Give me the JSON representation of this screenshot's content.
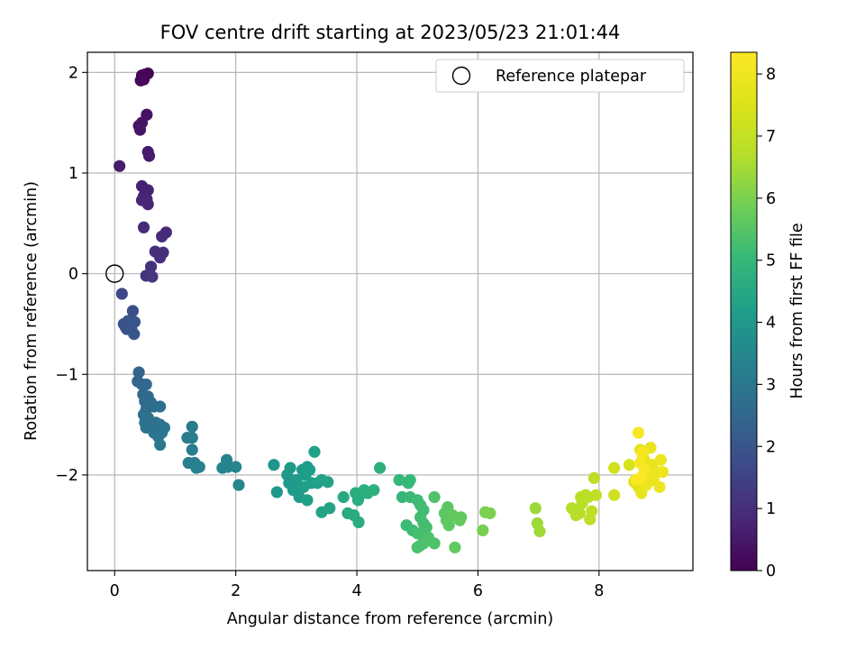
{
  "chart_data": {
    "type": "scatter",
    "title": "FOV centre drift starting at 2023/05/23 21:01:44",
    "xlabel": "Angular distance from reference (arcmin)",
    "ylabel": "Rotation from reference (arcmin)",
    "xlim": [
      -0.45,
      9.55
    ],
    "ylim": [
      -2.95,
      2.2
    ],
    "xticks": [
      0,
      2,
      4,
      6,
      8
    ],
    "yticks": [
      -2,
      -1,
      0,
      1,
      2
    ],
    "xtick_labels": [
      "0",
      "2",
      "4",
      "6",
      "8"
    ],
    "ytick_labels": [
      "−2",
      "−1",
      "0",
      "1",
      "2"
    ],
    "grid": true,
    "legend": {
      "position": "top-right",
      "label": "Reference platepar"
    },
    "reference_point": {
      "x": 0,
      "y": 0
    },
    "colorbar": {
      "label": "Hours from first FF file",
      "range": [
        0,
        8.35
      ],
      "ticks": [
        0,
        1,
        2,
        3,
        4,
        5,
        6,
        7,
        8
      ],
      "tick_labels": [
        "0",
        "1",
        "2",
        "3",
        "4",
        "5",
        "6",
        "7",
        "8"
      ],
      "colormap": "viridis"
    },
    "points": [
      {
        "x": 0.5,
        "y": 1.98,
        "h": 0.05
      },
      {
        "x": 0.55,
        "y": 1.99,
        "h": 0.08
      },
      {
        "x": 0.45,
        "y": 1.97,
        "h": 0.1
      },
      {
        "x": 0.48,
        "y": 1.93,
        "h": 0.12
      },
      {
        "x": 0.43,
        "y": 1.92,
        "h": 0.15
      },
      {
        "x": 0.53,
        "y": 1.58,
        "h": 0.35
      },
      {
        "x": 0.45,
        "y": 1.5,
        "h": 0.38
      },
      {
        "x": 0.4,
        "y": 1.47,
        "h": 0.4
      },
      {
        "x": 0.42,
        "y": 1.43,
        "h": 0.42
      },
      {
        "x": 0.55,
        "y": 1.21,
        "h": 0.55
      },
      {
        "x": 0.57,
        "y": 1.17,
        "h": 0.58
      },
      {
        "x": 0.08,
        "y": 1.07,
        "h": 0.62
      },
      {
        "x": 0.45,
        "y": 0.87,
        "h": 0.7
      },
      {
        "x": 0.55,
        "y": 0.83,
        "h": 0.72
      },
      {
        "x": 0.48,
        "y": 0.77,
        "h": 0.74
      },
      {
        "x": 0.53,
        "y": 0.74,
        "h": 0.76
      },
      {
        "x": 0.45,
        "y": 0.73,
        "h": 0.78
      },
      {
        "x": 0.55,
        "y": 0.69,
        "h": 0.8
      },
      {
        "x": 0.48,
        "y": 0.46,
        "h": 0.9
      },
      {
        "x": 0.85,
        "y": 0.41,
        "h": 0.92
      },
      {
        "x": 0.78,
        "y": 0.37,
        "h": 0.94
      },
      {
        "x": 0.67,
        "y": 0.22,
        "h": 1.0
      },
      {
        "x": 0.8,
        "y": 0.21,
        "h": 1.02
      },
      {
        "x": 0.75,
        "y": 0.16,
        "h": 1.04
      },
      {
        "x": 0.6,
        "y": 0.07,
        "h": 1.1
      },
      {
        "x": 0.52,
        "y": -0.02,
        "h": 1.15
      },
      {
        "x": 0.62,
        "y": -0.03,
        "h": 1.18
      },
      {
        "x": 0.12,
        "y": -0.2,
        "h": 1.65
      },
      {
        "x": 0.15,
        "y": -0.5,
        "h": 1.85
      },
      {
        "x": 0.22,
        "y": -0.47,
        "h": 1.88
      },
      {
        "x": 0.18,
        "y": -0.53,
        "h": 1.9
      },
      {
        "x": 0.2,
        "y": -0.55,
        "h": 1.92
      },
      {
        "x": 0.3,
        "y": -0.47,
        "h": 1.95
      },
      {
        "x": 0.3,
        "y": -0.37,
        "h": 1.8
      },
      {
        "x": 0.33,
        "y": -0.48,
        "h": 1.97
      },
      {
        "x": 0.28,
        "y": -0.56,
        "h": 2.0
      },
      {
        "x": 0.32,
        "y": -0.6,
        "h": 2.02
      },
      {
        "x": 0.4,
        "y": -0.98,
        "h": 2.4
      },
      {
        "x": 0.38,
        "y": -1.07,
        "h": 2.45
      },
      {
        "x": 0.45,
        "y": -1.1,
        "h": 2.48
      },
      {
        "x": 0.52,
        "y": -1.1,
        "h": 2.5
      },
      {
        "x": 0.47,
        "y": -1.2,
        "h": 2.55
      },
      {
        "x": 0.55,
        "y": -1.22,
        "h": 2.58
      },
      {
        "x": 0.5,
        "y": -1.27,
        "h": 2.6
      },
      {
        "x": 0.6,
        "y": -1.28,
        "h": 2.62
      },
      {
        "x": 0.52,
        "y": -1.35,
        "h": 2.65
      },
      {
        "x": 0.65,
        "y": -1.32,
        "h": 2.68
      },
      {
        "x": 0.75,
        "y": -1.32,
        "h": 2.7
      },
      {
        "x": 0.48,
        "y": -1.4,
        "h": 2.72
      },
      {
        "x": 0.55,
        "y": -1.43,
        "h": 2.75
      },
      {
        "x": 0.5,
        "y": -1.48,
        "h": 2.78
      },
      {
        "x": 0.68,
        "y": -1.48,
        "h": 2.8
      },
      {
        "x": 0.75,
        "y": -1.5,
        "h": 2.82
      },
      {
        "x": 0.82,
        "y": -1.53,
        "h": 2.85
      },
      {
        "x": 0.52,
        "y": -1.53,
        "h": 2.88
      },
      {
        "x": 0.65,
        "y": -1.58,
        "h": 2.9
      },
      {
        "x": 0.72,
        "y": -1.62,
        "h": 2.92
      },
      {
        "x": 0.78,
        "y": -1.58,
        "h": 2.95
      },
      {
        "x": 0.75,
        "y": -1.7,
        "h": 2.98
      },
      {
        "x": 1.28,
        "y": -1.52,
        "h": 3.1
      },
      {
        "x": 1.2,
        "y": -1.63,
        "h": 3.15
      },
      {
        "x": 1.28,
        "y": -1.63,
        "h": 3.18
      },
      {
        "x": 1.28,
        "y": -1.75,
        "h": 3.2
      },
      {
        "x": 1.22,
        "y": -1.88,
        "h": 3.22
      },
      {
        "x": 1.32,
        "y": -1.88,
        "h": 3.25
      },
      {
        "x": 1.4,
        "y": -1.92,
        "h": 3.28
      },
      {
        "x": 1.35,
        "y": -1.93,
        "h": 3.3
      },
      {
        "x": 1.78,
        "y": -1.93,
        "h": 3.4
      },
      {
        "x": 1.85,
        "y": -1.85,
        "h": 3.42
      },
      {
        "x": 1.87,
        "y": -1.92,
        "h": 3.44
      },
      {
        "x": 2.0,
        "y": -1.92,
        "h": 3.46
      },
      {
        "x": 2.05,
        "y": -2.1,
        "h": 3.5
      },
      {
        "x": 2.63,
        "y": -1.9,
        "h": 3.9
      },
      {
        "x": 2.68,
        "y": -2.17,
        "h": 3.95
      },
      {
        "x": 2.85,
        "y": -2.0,
        "h": 4.0
      },
      {
        "x": 2.9,
        "y": -1.93,
        "h": 4.02
      },
      {
        "x": 2.88,
        "y": -2.08,
        "h": 4.04
      },
      {
        "x": 2.95,
        "y": -2.15,
        "h": 4.06
      },
      {
        "x": 3.0,
        "y": -2.05,
        "h": 4.08
      },
      {
        "x": 3.05,
        "y": -2.22,
        "h": 4.1
      },
      {
        "x": 3.1,
        "y": -1.95,
        "h": 4.12
      },
      {
        "x": 3.15,
        "y": -2.0,
        "h": 4.14
      },
      {
        "x": 3.18,
        "y": -1.92,
        "h": 4.16
      },
      {
        "x": 3.22,
        "y": -1.95,
        "h": 4.18
      },
      {
        "x": 3.12,
        "y": -2.12,
        "h": 4.2
      },
      {
        "x": 3.25,
        "y": -2.08,
        "h": 4.22
      },
      {
        "x": 3.18,
        "y": -2.25,
        "h": 4.24
      },
      {
        "x": 3.3,
        "y": -1.77,
        "h": 4.26
      },
      {
        "x": 3.35,
        "y": -2.08,
        "h": 4.28
      },
      {
        "x": 3.42,
        "y": -2.05,
        "h": 4.3
      },
      {
        "x": 3.52,
        "y": -2.07,
        "h": 4.32
      },
      {
        "x": 3.42,
        "y": -2.37,
        "h": 4.34
      },
      {
        "x": 3.55,
        "y": -2.33,
        "h": 4.36
      },
      {
        "x": 3.78,
        "y": -2.22,
        "h": 4.55
      },
      {
        "x": 3.85,
        "y": -2.38,
        "h": 4.58
      },
      {
        "x": 3.95,
        "y": -2.4,
        "h": 4.6
      },
      {
        "x": 4.03,
        "y": -2.47,
        "h": 4.62
      },
      {
        "x": 3.98,
        "y": -2.18,
        "h": 4.64
      },
      {
        "x": 4.02,
        "y": -2.25,
        "h": 4.66
      },
      {
        "x": 4.05,
        "y": -2.2,
        "h": 4.68
      },
      {
        "x": 4.12,
        "y": -2.15,
        "h": 4.7
      },
      {
        "x": 4.18,
        "y": -2.18,
        "h": 4.72
      },
      {
        "x": 4.28,
        "y": -2.15,
        "h": 4.74
      },
      {
        "x": 4.38,
        "y": -1.93,
        "h": 4.76
      },
      {
        "x": 4.7,
        "y": -2.05,
        "h": 5.0
      },
      {
        "x": 4.75,
        "y": -2.22,
        "h": 5.02
      },
      {
        "x": 4.85,
        "y": -2.08,
        "h": 5.04
      },
      {
        "x": 4.88,
        "y": -2.05,
        "h": 5.06
      },
      {
        "x": 4.88,
        "y": -2.22,
        "h": 5.08
      },
      {
        "x": 4.82,
        "y": -2.5,
        "h": 5.1
      },
      {
        "x": 4.92,
        "y": -2.55,
        "h": 5.12
      },
      {
        "x": 5.0,
        "y": -2.25,
        "h": 5.14
      },
      {
        "x": 5.05,
        "y": -2.3,
        "h": 5.16
      },
      {
        "x": 5.1,
        "y": -2.35,
        "h": 5.18
      },
      {
        "x": 5.05,
        "y": -2.42,
        "h": 5.2
      },
      {
        "x": 5.1,
        "y": -2.48,
        "h": 5.22
      },
      {
        "x": 5.15,
        "y": -2.52,
        "h": 5.24
      },
      {
        "x": 5.0,
        "y": -2.58,
        "h": 5.26
      },
      {
        "x": 5.08,
        "y": -2.6,
        "h": 5.28
      },
      {
        "x": 5.15,
        "y": -2.65,
        "h": 5.3
      },
      {
        "x": 5.05,
        "y": -2.7,
        "h": 5.32
      },
      {
        "x": 5.0,
        "y": -2.72,
        "h": 5.34
      },
      {
        "x": 5.1,
        "y": -2.68,
        "h": 5.36
      },
      {
        "x": 5.18,
        "y": -2.62,
        "h": 5.38
      },
      {
        "x": 5.28,
        "y": -2.68,
        "h": 5.4
      },
      {
        "x": 5.28,
        "y": -2.22,
        "h": 5.42
      },
      {
        "x": 5.45,
        "y": -2.38,
        "h": 5.55
      },
      {
        "x": 5.5,
        "y": -2.32,
        "h": 5.58
      },
      {
        "x": 5.48,
        "y": -2.45,
        "h": 5.6
      },
      {
        "x": 5.52,
        "y": -2.5,
        "h": 5.62
      },
      {
        "x": 5.58,
        "y": -2.4,
        "h": 5.64
      },
      {
        "x": 5.62,
        "y": -2.72,
        "h": 5.66
      },
      {
        "x": 5.72,
        "y": -2.42,
        "h": 5.68
      },
      {
        "x": 5.7,
        "y": -2.45,
        "h": 5.7
      },
      {
        "x": 6.08,
        "y": -2.55,
        "h": 5.95
      },
      {
        "x": 6.12,
        "y": -2.37,
        "h": 5.98
      },
      {
        "x": 6.2,
        "y": -2.38,
        "h": 6.0
      },
      {
        "x": 6.95,
        "y": -2.33,
        "h": 6.4
      },
      {
        "x": 6.98,
        "y": -2.48,
        "h": 6.42
      },
      {
        "x": 7.02,
        "y": -2.56,
        "h": 6.44
      },
      {
        "x": 7.55,
        "y": -2.33,
        "h": 6.7
      },
      {
        "x": 7.62,
        "y": -2.4,
        "h": 6.72
      },
      {
        "x": 7.68,
        "y": -2.38,
        "h": 6.74
      },
      {
        "x": 7.7,
        "y": -2.22,
        "h": 6.76
      },
      {
        "x": 7.72,
        "y": -2.28,
        "h": 6.78
      },
      {
        "x": 7.78,
        "y": -2.2,
        "h": 6.8
      },
      {
        "x": 7.82,
        "y": -2.22,
        "h": 6.82
      },
      {
        "x": 7.85,
        "y": -2.44,
        "h": 6.84
      },
      {
        "x": 7.88,
        "y": -2.36,
        "h": 6.86
      },
      {
        "x": 7.92,
        "y": -2.03,
        "h": 6.88
      },
      {
        "x": 7.95,
        "y": -2.2,
        "h": 6.9
      },
      {
        "x": 8.25,
        "y": -2.2,
        "h": 7.2
      },
      {
        "x": 8.25,
        "y": -1.93,
        "h": 7.25
      },
      {
        "x": 8.5,
        "y": -1.9,
        "h": 7.4
      },
      {
        "x": 8.58,
        "y": -2.07,
        "h": 7.5
      },
      {
        "x": 8.6,
        "y": -2.05,
        "h": 7.55
      },
      {
        "x": 8.65,
        "y": -2.12,
        "h": 7.6
      },
      {
        "x": 8.68,
        "y": -1.75,
        "h": 7.7
      },
      {
        "x": 8.72,
        "y": -1.8,
        "h": 7.72
      },
      {
        "x": 8.75,
        "y": -1.85,
        "h": 7.74
      },
      {
        "x": 8.8,
        "y": -1.95,
        "h": 7.76
      },
      {
        "x": 8.82,
        "y": -2.0,
        "h": 7.78
      },
      {
        "x": 8.7,
        "y": -2.18,
        "h": 7.8
      },
      {
        "x": 8.85,
        "y": -1.73,
        "h": 7.82
      },
      {
        "x": 8.88,
        "y": -1.9,
        "h": 7.84
      },
      {
        "x": 8.9,
        "y": -2.05,
        "h": 7.86
      },
      {
        "x": 8.95,
        "y": -1.97,
        "h": 7.88
      },
      {
        "x": 9.02,
        "y": -1.85,
        "h": 7.9
      },
      {
        "x": 9.05,
        "y": -1.97,
        "h": 7.92
      },
      {
        "x": 9.0,
        "y": -2.12,
        "h": 7.94
      },
      {
        "x": 8.78,
        "y": -2.1,
        "h": 7.96
      },
      {
        "x": 8.65,
        "y": -1.58,
        "h": 8.2
      },
      {
        "x": 8.68,
        "y": -1.88,
        "h": 8.22
      },
      {
        "x": 8.72,
        "y": -1.78,
        "h": 8.24
      },
      {
        "x": 8.62,
        "y": -2.05,
        "h": 8.26
      },
      {
        "x": 8.75,
        "y": -1.95,
        "h": 8.28
      },
      {
        "x": 8.7,
        "y": -2.02,
        "h": 8.3
      }
    ]
  }
}
